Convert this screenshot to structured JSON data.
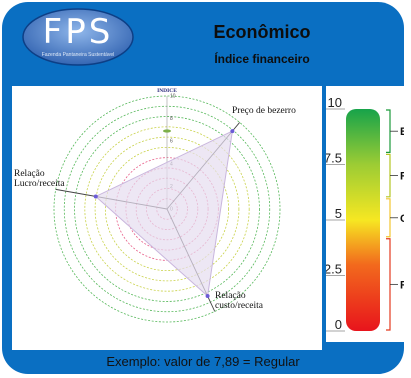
{
  "header": {
    "title": "Econômico",
    "subtitle": "Índice financeiro"
  },
  "logo": {
    "letters": "FPS",
    "caption": "Fazenda Pantaneira Sustentável"
  },
  "colors": {
    "card_background": "#0a6fc2",
    "series_point": "#6b5bd6",
    "series_fill": "#e6ddf0",
    "series_stroke": "#c9b6dd"
  },
  "chart_data": {
    "type": "radar",
    "title": "INDICE",
    "scale_ticks": [
      "0",
      "2",
      "4",
      "6",
      "8",
      "10"
    ],
    "rmax": 10,
    "grid_rings": 11,
    "axes": [
      "Preço de bezerro",
      "Relação\nLucro/receita",
      "Relação\ncusto/receita"
    ],
    "axis_angles_deg": [
      -50,
      190,
      65
    ],
    "values": [
      9.0,
      6.4,
      8.5
    ],
    "legend_marker": true
  },
  "gauge": {
    "ticks": [
      "0",
      "2.5",
      "5",
      "7.5",
      "10"
    ],
    "min": 0,
    "max": 10,
    "bands": [
      {
        "label": "B",
        "from": 8,
        "to": 10,
        "color": "#1a9a3a"
      },
      {
        "label": "R",
        "from": 6,
        "to": 8,
        "color": "#b5c623"
      },
      {
        "label": "C",
        "from": 4.2,
        "to": 6,
        "color": "#f2c62e"
      },
      {
        "label": "R",
        "from": 0,
        "to": 4.2,
        "color": "#e43a1f"
      }
    ]
  },
  "footer": {
    "text": "Exemplo: valor de 7,89 = Regular"
  }
}
